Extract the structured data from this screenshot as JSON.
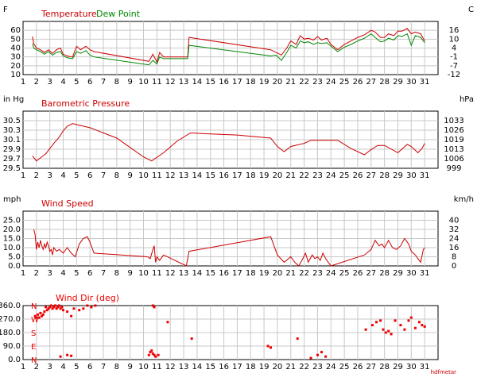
{
  "colors": {
    "temperature": "#cc0000",
    "dew_point": "#008800",
    "pressure": "#cc0000",
    "wind_speed": "#cc0000",
    "wind_dir": "#ee0000",
    "grid": "#c8c8c8"
  },
  "x_ticks": [
    1,
    2,
    3,
    4,
    5,
    6,
    7,
    8,
    9,
    10,
    11,
    12,
    13,
    14,
    15,
    16,
    17,
    18,
    19,
    20,
    21,
    22,
    23,
    24,
    25,
    26,
    27,
    28,
    29,
    30,
    31
  ],
  "watermark": "hdfmetar",
  "chart_data": [
    {
      "type": "line",
      "title": "Temperature",
      "title2": "Dew Point",
      "ylabel_left": "F",
      "ylabel_right": "C",
      "xlim": [
        1,
        32
      ],
      "ylim": [
        10,
        70
      ],
      "yticks_left": [
        "10",
        "20",
        "30",
        "40",
        "50",
        "60"
      ],
      "yticks_right": [
        "-12",
        "-7",
        "-1",
        "4",
        "10",
        "16"
      ],
      "grid": true,
      "series": [
        {
          "name": "Temperature",
          "color_key": "temperature",
          "x": [
            1.7,
            1.8,
            2.0,
            2.3,
            2.6,
            2.9,
            3.2,
            3.5,
            3.8,
            4.0,
            4.3,
            4.7,
            5.0,
            5.3,
            5.7,
            6.0,
            6.3,
            10.4,
            10.7,
            11.0,
            11.2,
            11.5,
            13.3,
            13.4,
            19.5,
            19.9,
            20.3,
            20.7,
            21.0,
            21.4,
            21.7,
            22.0,
            22.3,
            22.7,
            23.0,
            23.3,
            23.7,
            24.0,
            24.5,
            25.0,
            25.5,
            26.0,
            26.5,
            27.0,
            27.3,
            27.7,
            28.0,
            28.3,
            28.7,
            29.0,
            29.3,
            29.7,
            30.0,
            30.3,
            30.7,
            31.0
          ],
          "y": [
            53,
            45,
            40,
            38,
            35,
            38,
            34,
            38,
            40,
            33,
            31,
            30,
            42,
            38,
            42,
            38,
            36,
            25,
            33,
            24,
            35,
            30,
            30,
            52,
            38,
            35,
            32,
            40,
            48,
            44,
            54,
            50,
            51,
            49,
            53,
            49,
            51,
            44,
            38,
            44,
            48,
            52,
            55,
            60,
            58,
            52,
            52,
            56,
            54,
            59,
            59,
            62,
            56,
            58,
            56,
            48
          ]
        },
        {
          "name": "Dew Point",
          "color_key": "dew_point",
          "x": [
            1.7,
            1.8,
            2.0,
            2.3,
            2.6,
            2.9,
            3.2,
            3.5,
            3.8,
            4.0,
            4.3,
            4.7,
            5.0,
            5.3,
            5.7,
            6.0,
            6.3,
            10.4,
            10.7,
            11.0,
            11.2,
            11.5,
            13.3,
            13.4,
            19.5,
            19.9,
            20.3,
            20.7,
            21.0,
            21.4,
            21.7,
            22.0,
            22.3,
            22.7,
            23.0,
            23.3,
            23.7,
            24.0,
            24.5,
            25.0,
            25.5,
            26.0,
            26.5,
            27.0,
            27.3,
            27.7,
            28.0,
            28.3,
            28.7,
            29.0,
            29.3,
            29.7,
            30.0,
            30.3,
            30.7,
            31.0
          ],
          "y": [
            45,
            40,
            38,
            36,
            33,
            36,
            32,
            35,
            36,
            31,
            29,
            28,
            36,
            34,
            37,
            32,
            30,
            21,
            26,
            22,
            30,
            28,
            28,
            43,
            31,
            32,
            26,
            35,
            43,
            40,
            48,
            46,
            47,
            44,
            46,
            45,
            46,
            42,
            36,
            41,
            44,
            48,
            51,
            56,
            52,
            47,
            48,
            51,
            49,
            54,
            53,
            56,
            43,
            54,
            52,
            46
          ]
        }
      ]
    },
    {
      "type": "line",
      "title": "Barometric Pressure",
      "ylabel_left": "in Hg",
      "ylabel_right": "hPa",
      "xlim": [
        1,
        32
      ],
      "ylim": [
        29.5,
        30.6
      ],
      "yticks_left": [
        "29.5",
        "29.7",
        "29.9",
        "30.1",
        "30.3",
        "30.5"
      ],
      "yticks_right": [
        "999",
        "1006",
        "1013",
        "1019",
        "1026",
        "1033"
      ],
      "grid": true,
      "series": [
        {
          "name": "Barometric Pressure",
          "color_key": "pressure",
          "x": [
            1.7,
            2.0,
            2.3,
            2.7,
            3.0,
            3.3,
            3.7,
            4.0,
            4.3,
            4.7,
            5.0,
            6.0,
            6.5,
            8.0,
            9.0,
            10.0,
            10.6,
            11.5,
            12.5,
            13.5,
            15.0,
            17.0,
            19.5,
            20.0,
            20.5,
            21.0,
            22.0,
            22.5,
            23.0,
            24.5,
            25.5,
            26.5,
            27.0,
            27.5,
            28.0,
            29.0,
            29.7,
            30.0,
            30.5,
            30.8,
            31.0
          ],
          "y": [
            29.74,
            29.64,
            29.7,
            29.78,
            29.88,
            29.98,
            30.1,
            30.22,
            30.31,
            30.36,
            30.34,
            30.28,
            30.23,
            30.08,
            29.9,
            29.72,
            29.64,
            29.8,
            30.02,
            30.18,
            30.16,
            30.14,
            30.08,
            29.92,
            29.82,
            29.92,
            29.98,
            30.04,
            30.04,
            30.04,
            29.88,
            29.76,
            29.86,
            29.94,
            29.94,
            29.8,
            29.96,
            29.92,
            29.8,
            29.88,
            29.98
          ]
        }
      ]
    },
    {
      "type": "line",
      "title": "Wind Speed",
      "ylabel_left": "mph",
      "ylabel_right": "km/h",
      "xlim": [
        1,
        32
      ],
      "ylim": [
        0,
        30
      ],
      "yticks_left": [
        "0.0",
        "5.0",
        "10.0",
        "15.0",
        "20.0",
        "25.0"
      ],
      "yticks_right": [
        "0",
        "8",
        "16",
        "24",
        "32",
        "40"
      ],
      "grid": true,
      "series": [
        {
          "name": "Wind Speed",
          "color_key": "wind_speed",
          "x": [
            1.8,
            1.9,
            2.0,
            2.1,
            2.2,
            2.3,
            2.4,
            2.5,
            2.6,
            2.7,
            2.8,
            2.9,
            3.0,
            3.1,
            3.2,
            3.3,
            3.5,
            3.7,
            4.0,
            4.3,
            4.6,
            4.9,
            5.2,
            5.5,
            5.8,
            6.0,
            6.3,
            10.3,
            10.5,
            10.7,
            10.8,
            10.9,
            11.0,
            11.2,
            11.5,
            13.2,
            13.4,
            19.5,
            20.0,
            20.5,
            21.0,
            21.3,
            21.6,
            21.9,
            22.1,
            22.3,
            22.6,
            22.8,
            23.0,
            23.2,
            23.4,
            23.6,
            23.8,
            24.0,
            26.5,
            27.0,
            27.3,
            27.6,
            27.8,
            28.0,
            28.3,
            28.6,
            28.9,
            29.2,
            29.5,
            29.8,
            30.0,
            30.3,
            30.5,
            30.7,
            30.9,
            31.0
          ],
          "y": [
            20,
            17,
            9,
            13,
            10,
            14,
            11,
            9,
            12,
            10,
            13,
            11,
            8,
            9,
            6,
            10,
            8,
            9,
            7,
            10,
            7,
            5,
            12,
            15,
            16,
            13,
            7,
            5,
            4,
            9,
            11,
            2,
            5,
            3,
            6,
            0,
            8,
            16,
            6,
            2,
            5,
            2,
            0,
            4,
            7,
            2,
            6,
            4,
            5,
            3,
            7,
            4,
            2,
            0,
            6,
            9,
            14,
            11,
            12,
            10,
            14,
            10,
            9,
            11,
            15,
            12,
            8,
            6,
            4,
            2,
            9,
            10
          ]
        }
      ]
    },
    {
      "type": "scatter",
      "title": "Wind Dir (deg)",
      "xlim": [
        1,
        32
      ],
      "ylim": [
        0,
        360
      ],
      "yticks_left": [
        "0.0",
        "90.0",
        "180.0",
        "270.0",
        "360.0"
      ],
      "compass_labels": [
        "N",
        "E",
        "S",
        "W",
        "N"
      ],
      "grid": true,
      "series": [
        {
          "name": "Wind Dir",
          "color_key": "wind_dir",
          "x": [
            1.9,
            2.0,
            2.1,
            2.2,
            2.3,
            2.4,
            2.5,
            2.6,
            2.7,
            2.8,
            2.9,
            3.0,
            3.1,
            3.2,
            3.3,
            3.4,
            3.5,
            3.6,
            3.7,
            3.8,
            3.9,
            4.0,
            4.3,
            4.6,
            4.8,
            5.2,
            5.5,
            5.8,
            6.1,
            6.4,
            3.8,
            4.3,
            4.6,
            10.4,
            10.5,
            10.6,
            10.7,
            10.8,
            10.9,
            11.1,
            10.7,
            10.8,
            11.8,
            13.6,
            19.3,
            19.5,
            21.5,
            22.5,
            23.0,
            23.3,
            23.6,
            26.6,
            27.1,
            27.4,
            27.7,
            27.9,
            28.1,
            28.3,
            28.5,
            28.8,
            29.2,
            29.5,
            29.8,
            30.0,
            30.3,
            30.6,
            30.8,
            31.0
          ],
          "y": [
            290,
            280,
            300,
            280,
            310,
            290,
            300,
            320,
            350,
            330,
            340,
            350,
            360,
            340,
            350,
            360,
            340,
            350,
            360,
            340,
            350,
            330,
            320,
            290,
            340,
            330,
            340,
            360,
            350,
            360,
            20,
            30,
            25,
            30,
            50,
            60,
            40,
            30,
            20,
            30,
            360,
            350,
            250,
            140,
            90,
            80,
            140,
            10,
            30,
            50,
            20,
            200,
            230,
            250,
            260,
            200,
            180,
            190,
            170,
            260,
            230,
            200,
            260,
            280,
            210,
            250,
            230,
            220
          ]
        }
      ]
    }
  ]
}
